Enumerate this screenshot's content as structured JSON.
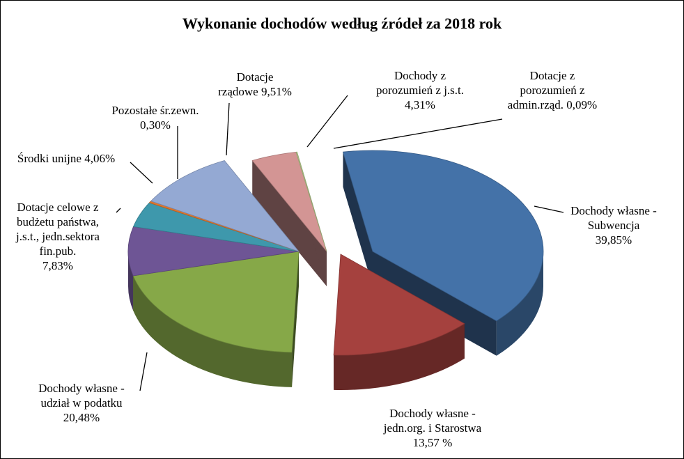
{
  "chart_data": {
    "type": "pie",
    "title": "Wykonanie  dochodów według źródeł za 2018 rok",
    "slices": [
      {
        "label_lines": [
          "Dochody własne -",
          "Subwencja",
          "39,85%"
        ],
        "value": 39.85,
        "color": "#4472A8"
      },
      {
        "label_lines": [
          "Dochody własne -",
          "jedn.org. i Starostwa",
          "13,57 %"
        ],
        "value": 13.57,
        "color": "#A5413E"
      },
      {
        "label_lines": [
          "Dochody własne -",
          "udział w podatku",
          "20,48%"
        ],
        "value": 20.48,
        "color": "#86A848"
      },
      {
        "label_lines": [
          "Dotacje celowe z",
          "budżetu państwa,",
          "j.s.t., jedn.sektora",
          "fin.pub.",
          "7,83%"
        ],
        "value": 7.83,
        "color": "#6E5595"
      },
      {
        "label_lines": [
          "Środki unijne 4,06%"
        ],
        "value": 4.06,
        "color": "#3E98AC"
      },
      {
        "label_lines": [
          "Pozostałe śr.zewn.",
          "0,30%"
        ],
        "value": 0.3,
        "color": "#E0762C"
      },
      {
        "label_lines": [
          "Dotacje",
          "rządowe 9,51%"
        ],
        "value": 9.51,
        "color": "#94A9D3"
      },
      {
        "label_lines": [
          "Dochody z",
          "porozumień z j.s.t.",
          "4,31%"
        ],
        "value": 4.31,
        "color": "#D39594"
      },
      {
        "label_lines": [
          "Dotacje z",
          "porozumień z",
          "admin.rząd.  0,09%"
        ],
        "value": 0.09,
        "color": "#B7CD8C"
      }
    ]
  }
}
